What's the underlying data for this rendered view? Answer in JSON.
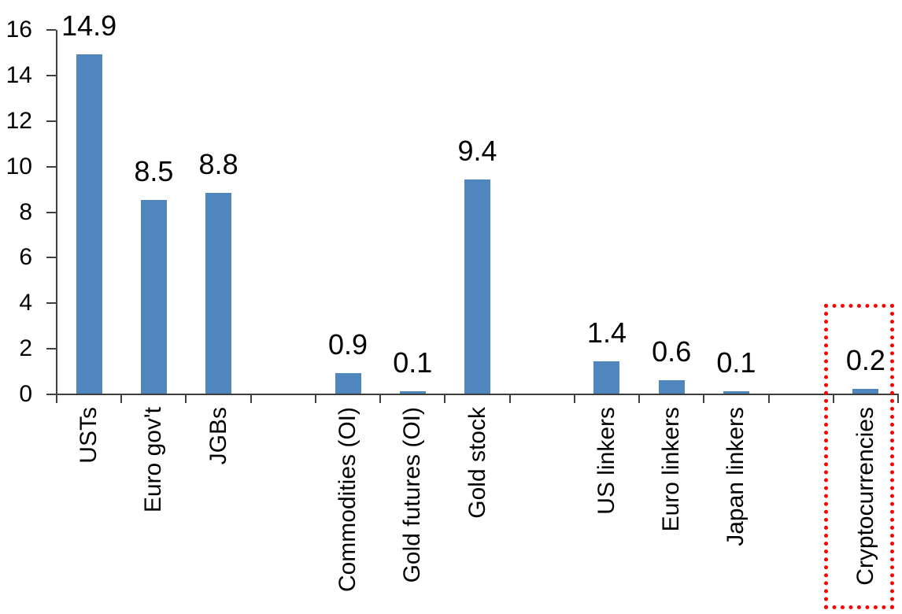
{
  "chart_data": {
    "type": "bar",
    "categories": [
      "USTs",
      "Euro gov't",
      "JGBs",
      "Commodities (OI)",
      "Gold futures (OI)",
      "Gold stock",
      "US linkers",
      "Euro linkers",
      "Japan linkers",
      "Cryptocurrencies"
    ],
    "values": [
      14.9,
      8.5,
      8.8,
      0.9,
      0.1,
      9.4,
      1.4,
      0.6,
      0.1,
      0.2
    ],
    "data_labels": [
      "14.9",
      "8.5",
      "8.8",
      "0.9",
      "0.1",
      "9.4",
      "1.4",
      "0.6",
      "0.1",
      "0.2"
    ],
    "groups": [
      [
        "USTs",
        "Euro gov't",
        "JGBs"
      ],
      [
        "Commodities (OI)",
        "Gold futures (OI)",
        "Gold stock"
      ],
      [
        "US linkers",
        "Euro linkers",
        "Japan linkers"
      ],
      [
        "Cryptocurrencies"
      ]
    ],
    "y_axis": {
      "min": 0,
      "max": 16,
      "ticks": [
        0,
        2,
        4,
        6,
        8,
        10,
        12,
        14,
        16
      ]
    },
    "grid": "off",
    "legend": "none",
    "bar_color": "#4e86bd",
    "axis_color": "#3f3f3f",
    "text_color": "#000000",
    "highlight": {
      "category": "Cryptocurrencies",
      "border_color": "#ff0000",
      "border_style": "dotted"
    }
  }
}
